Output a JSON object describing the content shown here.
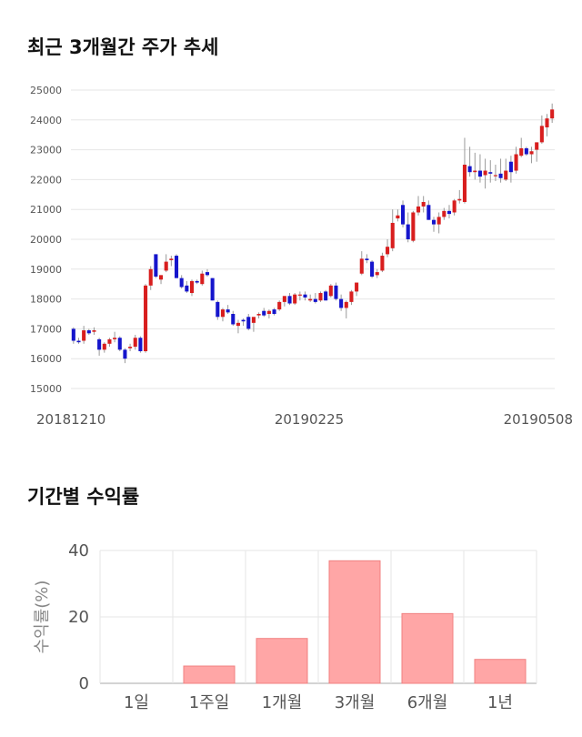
{
  "sections": {
    "price_title": "최근 3개월간 주가 추세",
    "returns_title": "기간별 수익률"
  },
  "colors": {
    "up": "#d81e1e",
    "down": "#1515cc",
    "bar_fill": "#ffa6a6",
    "bar_stroke": "#f08080",
    "grid": "#e6e6e6"
  },
  "chart_data": [
    {
      "type": "candlestick",
      "ylim": [
        15000,
        25000
      ],
      "yticks": [
        15000,
        16000,
        17000,
        18000,
        19000,
        20000,
        21000,
        22000,
        23000,
        24000,
        25000
      ],
      "x_tick_labels": [
        "20181210",
        "20190225",
        "20190508"
      ],
      "grid": true,
      "ohlc": [
        [
          17000,
          17050,
          16500,
          16600
        ],
        [
          16600,
          16700,
          16500,
          16550
        ],
        [
          16600,
          17100,
          16500,
          16950
        ],
        [
          16950,
          17000,
          16800,
          16850
        ],
        [
          16900,
          17050,
          16800,
          16950
        ],
        [
          16650,
          16700,
          16100,
          16300
        ],
        [
          16300,
          16550,
          16200,
          16500
        ],
        [
          16500,
          16700,
          16400,
          16650
        ],
        [
          16650,
          16900,
          16550,
          16700
        ],
        [
          16700,
          16750,
          16250,
          16300
        ],
        [
          16300,
          16350,
          15850,
          16000
        ],
        [
          16350,
          16500,
          16250,
          16400
        ],
        [
          16400,
          16800,
          16300,
          16700
        ],
        [
          16700,
          16750,
          16200,
          16250
        ],
        [
          16250,
          18500,
          16200,
          18450
        ],
        [
          18450,
          19100,
          18300,
          19000
        ],
        [
          19500,
          19500,
          18700,
          18750
        ],
        [
          18650,
          18800,
          18500,
          18800
        ],
        [
          18950,
          19500,
          18900,
          19250
        ],
        [
          19300,
          19450,
          19100,
          19350
        ],
        [
          19450,
          19500,
          18700,
          18700
        ],
        [
          18700,
          18800,
          18350,
          18400
        ],
        [
          18450,
          18600,
          18200,
          18250
        ],
        [
          18200,
          18650,
          18100,
          18600
        ],
        [
          18600,
          18650,
          18500,
          18550
        ],
        [
          18500,
          18950,
          18450,
          18850
        ],
        [
          18900,
          19000,
          18750,
          18800
        ],
        [
          18700,
          18700,
          17950,
          17950
        ],
        [
          17900,
          17950,
          17300,
          17400
        ],
        [
          17400,
          17700,
          17250,
          17650
        ],
        [
          17650,
          17800,
          17500,
          17550
        ],
        [
          17500,
          17600,
          17100,
          17150
        ],
        [
          17100,
          17300,
          16850,
          17200
        ],
        [
          17300,
          17350,
          17100,
          17250
        ],
        [
          17400,
          17500,
          16950,
          17000
        ],
        [
          17200,
          17350,
          16900,
          17400
        ],
        [
          17450,
          17550,
          17350,
          17500
        ],
        [
          17600,
          17700,
          17400,
          17450
        ],
        [
          17500,
          17650,
          17350,
          17600
        ],
        [
          17650,
          17700,
          17450,
          17500
        ],
        [
          17650,
          17950,
          17600,
          17900
        ],
        [
          17900,
          18100,
          17750,
          18100
        ],
        [
          18100,
          18200,
          17800,
          17850
        ],
        [
          17850,
          18200,
          17800,
          18150
        ],
        [
          18150,
          18250,
          17950,
          18150
        ],
        [
          18150,
          18250,
          17950,
          18050
        ],
        [
          17950,
          18150,
          17900,
          18000
        ],
        [
          18000,
          18200,
          17850,
          17900
        ],
        [
          17950,
          18250,
          17900,
          18200
        ],
        [
          18250,
          18300,
          17950,
          17950
        ],
        [
          18100,
          18500,
          18050,
          18450
        ],
        [
          18450,
          18550,
          17950,
          18000
        ],
        [
          18000,
          18150,
          17600,
          17700
        ],
        [
          17700,
          17950,
          17350,
          17900
        ],
        [
          17900,
          18300,
          17800,
          18250
        ],
        [
          18250,
          18550,
          18100,
          18550
        ],
        [
          18850,
          19600,
          18800,
          19350
        ],
        [
          19350,
          19500,
          19200,
          19300
        ],
        [
          19250,
          19300,
          18700,
          18750
        ],
        [
          18800,
          19000,
          18700,
          18900
        ],
        [
          18950,
          19550,
          18900,
          19450
        ],
        [
          19500,
          20000,
          19400,
          19750
        ],
        [
          19700,
          21000,
          19600,
          20550
        ],
        [
          20700,
          21000,
          20600,
          20800
        ],
        [
          21150,
          21300,
          20400,
          20500
        ],
        [
          20500,
          20900,
          19900,
          20000
        ],
        [
          19950,
          20950,
          19900,
          20900
        ],
        [
          20900,
          21450,
          20800,
          21100
        ],
        [
          21100,
          21450,
          20900,
          21250
        ],
        [
          21150,
          21300,
          20650,
          20650
        ],
        [
          20650,
          20750,
          20250,
          20500
        ],
        [
          20500,
          20900,
          20200,
          20750
        ],
        [
          20750,
          21050,
          20650,
          20950
        ],
        [
          20950,
          21150,
          20700,
          20850
        ],
        [
          20900,
          21350,
          20800,
          21300
        ],
        [
          21300,
          21650,
          21200,
          21350
        ],
        [
          21250,
          23400,
          21200,
          22500
        ],
        [
          22450,
          23100,
          22100,
          22250
        ],
        [
          22250,
          22900,
          22000,
          22300
        ],
        [
          22300,
          22850,
          21900,
          22100
        ],
        [
          22150,
          22700,
          21700,
          22300
        ],
        [
          22250,
          22650,
          21900,
          22200
        ],
        [
          22150,
          22500,
          21950,
          22150
        ],
        [
          22200,
          22700,
          21900,
          22050
        ],
        [
          22000,
          22700,
          21950,
          22300
        ],
        [
          22600,
          22800,
          21900,
          22250
        ],
        [
          22300,
          23100,
          22200,
          22850
        ],
        [
          22800,
          23400,
          22750,
          23050
        ],
        [
          23050,
          23100,
          22800,
          22850
        ],
        [
          22850,
          23100,
          22550,
          22950
        ],
        [
          23000,
          23250,
          22600,
          23250
        ],
        [
          23250,
          24150,
          23200,
          23800
        ],
        [
          23750,
          24200,
          23450,
          24050
        ],
        [
          24050,
          24550,
          23900,
          24350
        ]
      ]
    },
    {
      "type": "bar",
      "categories": [
        "1일",
        "1주일",
        "1개월",
        "3개월",
        "6개월",
        "1년"
      ],
      "values": [
        0.0,
        5.2,
        13.5,
        36.9,
        21.0,
        7.2
      ],
      "ylabel": "수익률(%)",
      "ylim": [
        0,
        40
      ],
      "yticks": [
        0,
        20,
        40
      ],
      "grid": true
    }
  ]
}
